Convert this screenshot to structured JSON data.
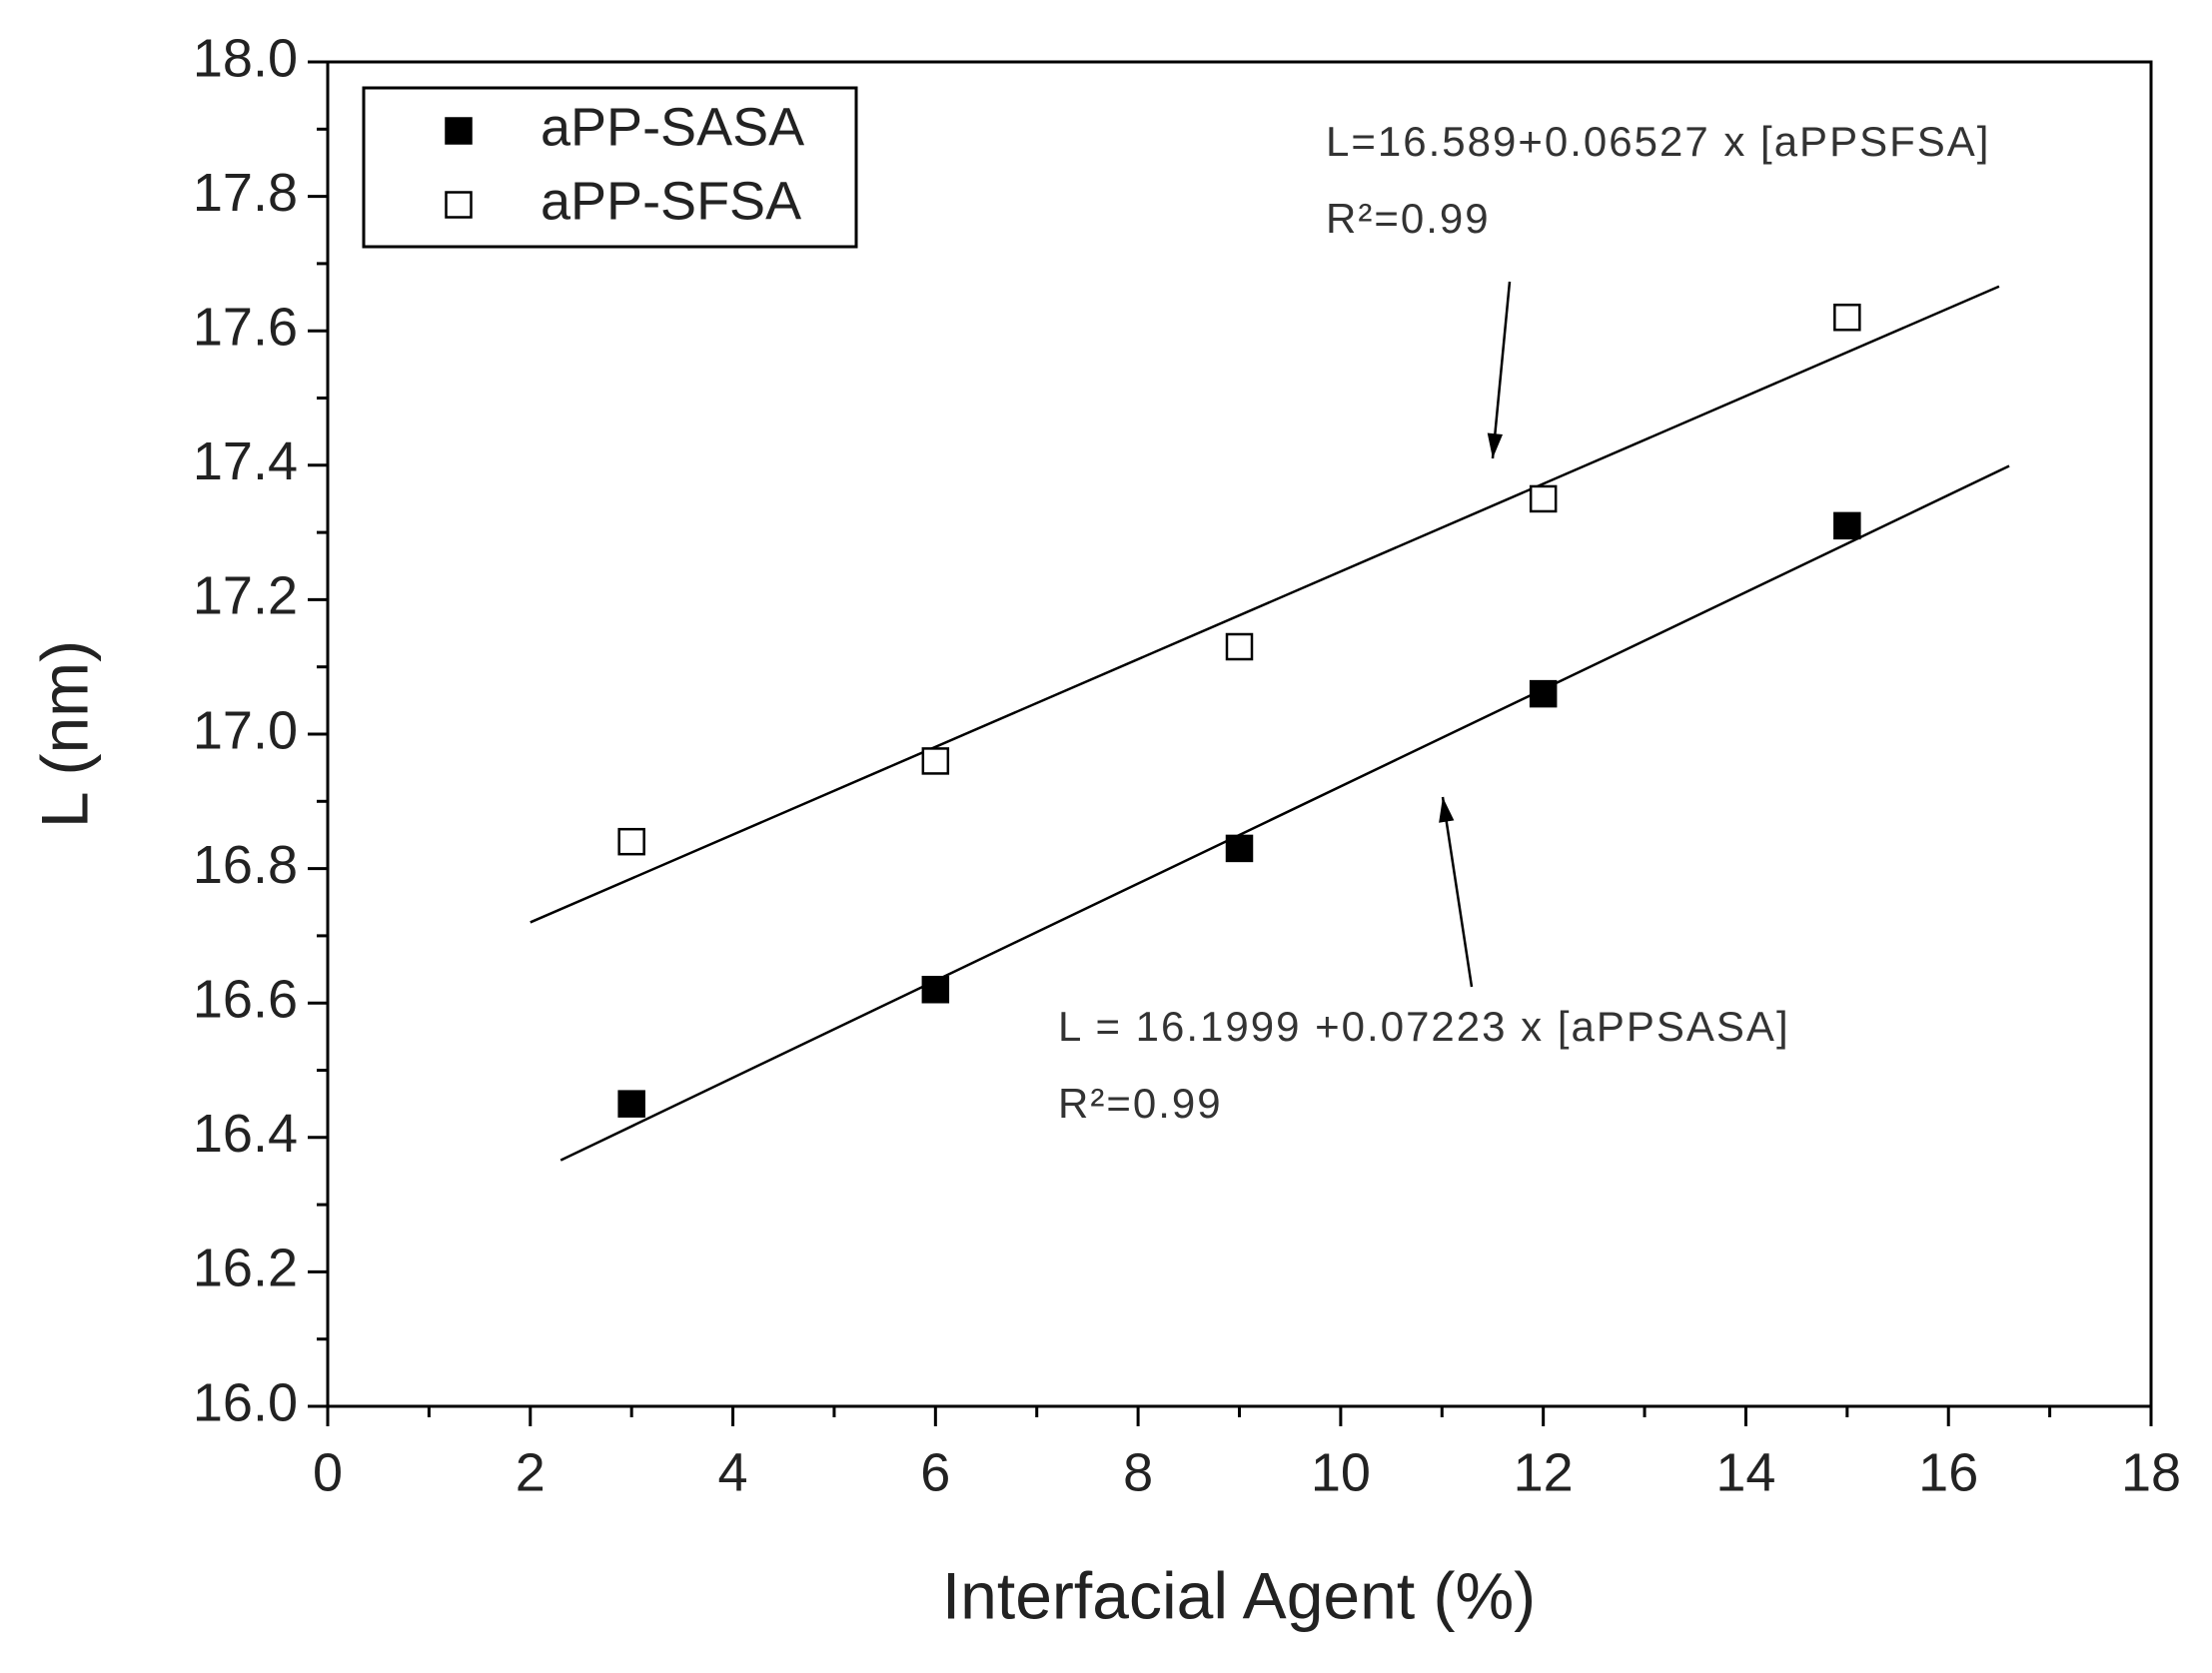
{
  "chart_data": {
    "type": "scatter",
    "x_label": "Interfacial Agent (%)",
    "y_label": "L (nm)",
    "xlim": [
      0,
      18
    ],
    "xticks": [
      0,
      2,
      4,
      6,
      8,
      10,
      12,
      14,
      16,
      18
    ],
    "xminorticks": [
      1,
      3,
      5,
      7,
      9,
      11,
      13,
      15,
      17
    ],
    "ylim": [
      16,
      18
    ],
    "yticks": [
      {
        "value": 16,
        "label": "16.0"
      },
      16.2,
      16.4,
      16.6,
      16.8,
      {
        "value": 17,
        "label": "17.0"
      },
      17.2,
      17.4,
      17.6,
      17.8,
      {
        "value": 18,
        "label": "18.0"
      }
    ],
    "yminorticks": [
      16.1,
      16.3,
      16.5,
      16.7,
      16.9,
      17.1,
      17.3,
      17.5,
      17.7,
      17.9
    ],
    "legend": "upper left",
    "series": [
      {
        "name": "aPP-SASA",
        "color": "#000000",
        "filled": true,
        "x": [
          3,
          6,
          9,
          12,
          15
        ],
        "values": [
          16.45,
          16.62,
          16.83,
          17.06,
          17.31
        ],
        "fit_x": [
          2.3,
          16.6
        ],
        "fit_values": [
          16.366,
          17.399
        ]
      },
      {
        "name": "aPP-SFSA",
        "color": "#000000",
        "filled": false,
        "x": [
          3,
          6,
          9,
          12,
          15
        ],
        "values": [
          16.84,
          16.96,
          17.13,
          17.35,
          17.62
        ],
        "fit_x": [
          2.0,
          16.5
        ],
        "fit_values": [
          16.72,
          17.666
        ]
      }
    ],
    "annotations": [
      {
        "lines": [
          "L=16.589+0.06527 x [aPPSFSA]",
          "R²=0.99"
        ]
      },
      {
        "lines": [
          "L = 16.1999 +0.07223 x [aPPSASA]",
          "R²=0.99"
        ]
      }
    ]
  }
}
